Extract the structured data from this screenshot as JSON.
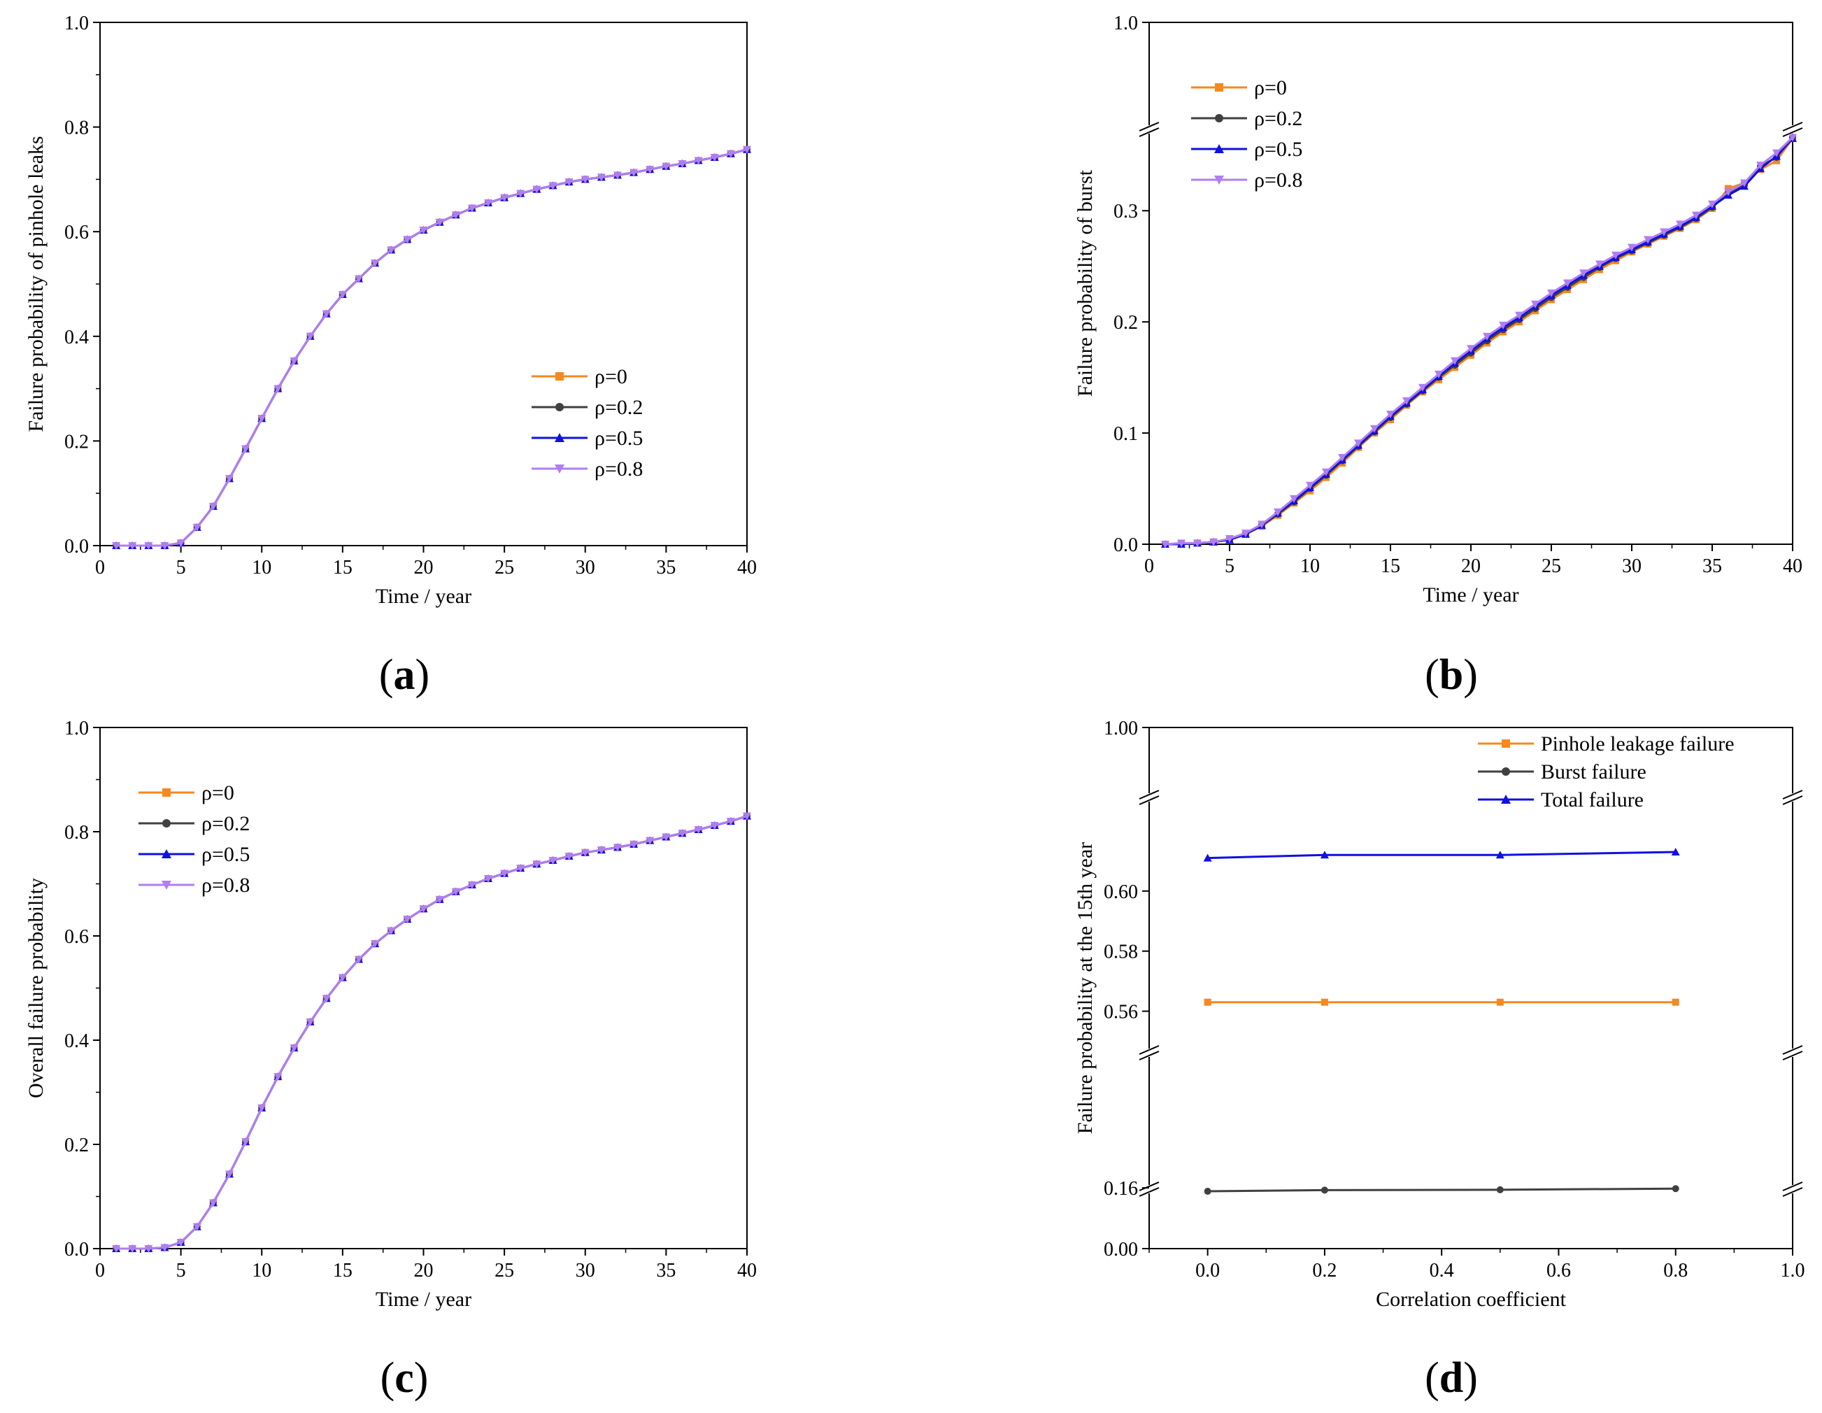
{
  "chart_data": [
    {
      "id": "a",
      "type": "line",
      "panel_label": "a",
      "xlabel": "Time / year",
      "ylabel": "Failure probability of pinhole leaks",
      "xlim": [
        0,
        40
      ],
      "ylim": [
        0,
        1.0
      ],
      "xticks": [
        0,
        5,
        10,
        15,
        20,
        25,
        30,
        35,
        40
      ],
      "xtick_labels": [
        "0",
        "5",
        "10",
        "15",
        "20",
        "25",
        "30",
        "35",
        "40"
      ],
      "yticks": [
        0,
        0.2,
        0.4,
        0.6,
        0.8,
        1.0
      ],
      "ytick_labels": [
        "0.0",
        "0.2",
        "0.4",
        "0.6",
        "0.8",
        "1.0"
      ],
      "legend_position": "center-right",
      "x": [
        1,
        2,
        3,
        4,
        5,
        6,
        7,
        8,
        9,
        10,
        11,
        12,
        13,
        14,
        15,
        16,
        17,
        18,
        19,
        20,
        21,
        22,
        23,
        24,
        25,
        26,
        27,
        28,
        29,
        30,
        31,
        32,
        33,
        34,
        35,
        36,
        37,
        38,
        39,
        40
      ],
      "series": [
        {
          "name": "ρ=0",
          "color": "#f5891f",
          "marker": "square",
          "values": [
            0,
            0,
            0,
            0,
            0.005,
            0.035,
            0.075,
            0.128,
            0.185,
            0.243,
            0.3,
            0.353,
            0.4,
            0.443,
            0.48,
            0.51,
            0.54,
            0.565,
            0.585,
            0.603,
            0.618,
            0.632,
            0.645,
            0.655,
            0.665,
            0.673,
            0.681,
            0.688,
            0.695,
            0.7,
            0.704,
            0.708,
            0.713,
            0.719,
            0.725,
            0.73,
            0.736,
            0.742,
            0.749,
            0.757
          ]
        },
        {
          "name": "ρ=0.2",
          "color": "#404040",
          "marker": "circle",
          "values": [
            0,
            0,
            0,
            0,
            0.005,
            0.035,
            0.075,
            0.128,
            0.185,
            0.243,
            0.3,
            0.353,
            0.4,
            0.443,
            0.48,
            0.51,
            0.54,
            0.565,
            0.585,
            0.603,
            0.618,
            0.632,
            0.645,
            0.655,
            0.665,
            0.673,
            0.681,
            0.688,
            0.695,
            0.7,
            0.704,
            0.708,
            0.713,
            0.719,
            0.725,
            0.73,
            0.736,
            0.742,
            0.749,
            0.757
          ]
        },
        {
          "name": "ρ=0.5",
          "color": "#1010e0",
          "marker": "triangle-up",
          "values": [
            0,
            0,
            0,
            0,
            0.005,
            0.035,
            0.075,
            0.128,
            0.185,
            0.243,
            0.3,
            0.353,
            0.4,
            0.443,
            0.48,
            0.51,
            0.54,
            0.565,
            0.585,
            0.603,
            0.618,
            0.632,
            0.645,
            0.655,
            0.665,
            0.673,
            0.681,
            0.688,
            0.695,
            0.7,
            0.704,
            0.708,
            0.713,
            0.719,
            0.725,
            0.73,
            0.736,
            0.742,
            0.749,
            0.757
          ]
        },
        {
          "name": "ρ=0.8",
          "color": "#b07ef0",
          "marker": "triangle-down",
          "values": [
            0,
            0,
            0,
            0,
            0.005,
            0.035,
            0.075,
            0.128,
            0.185,
            0.243,
            0.3,
            0.353,
            0.4,
            0.443,
            0.48,
            0.51,
            0.54,
            0.565,
            0.585,
            0.603,
            0.618,
            0.632,
            0.645,
            0.655,
            0.665,
            0.673,
            0.681,
            0.688,
            0.695,
            0.7,
            0.704,
            0.708,
            0.713,
            0.719,
            0.725,
            0.73,
            0.736,
            0.742,
            0.749,
            0.757
          ]
        }
      ]
    },
    {
      "id": "b",
      "type": "line",
      "panel_label": "b",
      "xlabel": "Time / year",
      "ylabel": "Failure probability of burst",
      "xlim": [
        0,
        40
      ],
      "ylim": [
        0,
        1.0
      ],
      "y_break": [
        0.37,
        0.99
      ],
      "xticks": [
        0,
        5,
        10,
        15,
        20,
        25,
        30,
        35,
        40
      ],
      "xtick_labels": [
        "0",
        "5",
        "10",
        "15",
        "20",
        "25",
        "30",
        "35",
        "40"
      ],
      "yticks": [
        0,
        0.1,
        0.2,
        0.3,
        1.0
      ],
      "ytick_labels": [
        "0.0",
        "0.1",
        "0.2",
        "0.3",
        "1.0"
      ],
      "legend_position": "top-left",
      "x": [
        1,
        2,
        3,
        4,
        5,
        6,
        7,
        8,
        9,
        10,
        11,
        12,
        13,
        14,
        15,
        16,
        17,
        18,
        19,
        20,
        21,
        22,
        23,
        24,
        25,
        26,
        27,
        28,
        29,
        30,
        31,
        32,
        33,
        34,
        35,
        36,
        37,
        38,
        39,
        40
      ],
      "series": [
        {
          "name": "ρ=0",
          "color": "#f5891f",
          "marker": "square",
          "values": [
            0,
            0,
            0.001,
            0.002,
            0.004,
            0.009,
            0.016,
            0.026,
            0.037,
            0.048,
            0.06,
            0.073,
            0.087,
            0.1,
            0.112,
            0.125,
            0.137,
            0.148,
            0.159,
            0.17,
            0.181,
            0.191,
            0.2,
            0.21,
            0.22,
            0.229,
            0.238,
            0.247,
            0.255,
            0.263,
            0.27,
            0.277,
            0.284,
            0.292,
            0.302,
            0.32,
            0.325,
            0.337,
            0.345,
            0.365
          ]
        },
        {
          "name": "ρ=0.2",
          "color": "#404040",
          "marker": "circle",
          "values": [
            0,
            0,
            0.001,
            0.002,
            0.004,
            0.009,
            0.017,
            0.027,
            0.038,
            0.05,
            0.062,
            0.075,
            0.088,
            0.101,
            0.114,
            0.126,
            0.138,
            0.15,
            0.161,
            0.172,
            0.183,
            0.193,
            0.202,
            0.212,
            0.222,
            0.231,
            0.24,
            0.249,
            0.257,
            0.264,
            0.271,
            0.278,
            0.285,
            0.293,
            0.303,
            0.316,
            0.323,
            0.34,
            0.348,
            0.366
          ]
        },
        {
          "name": "ρ=0.5",
          "color": "#1010e0",
          "marker": "triangle-up",
          "values": [
            0,
            0,
            0.001,
            0.002,
            0.004,
            0.009,
            0.017,
            0.028,
            0.039,
            0.051,
            0.063,
            0.076,
            0.089,
            0.102,
            0.115,
            0.127,
            0.139,
            0.151,
            0.163,
            0.174,
            0.185,
            0.195,
            0.204,
            0.214,
            0.224,
            0.233,
            0.242,
            0.25,
            0.258,
            0.265,
            0.272,
            0.279,
            0.286,
            0.294,
            0.304,
            0.314,
            0.322,
            0.338,
            0.349,
            0.365
          ]
        },
        {
          "name": "ρ=0.8",
          "color": "#b07ef0",
          "marker": "triangle-down",
          "values": [
            0,
            0.001,
            0.001,
            0.002,
            0.005,
            0.01,
            0.018,
            0.029,
            0.041,
            0.053,
            0.065,
            0.078,
            0.091,
            0.104,
            0.117,
            0.129,
            0.141,
            0.153,
            0.165,
            0.176,
            0.187,
            0.197,
            0.206,
            0.216,
            0.226,
            0.235,
            0.244,
            0.252,
            0.26,
            0.267,
            0.274,
            0.281,
            0.288,
            0.296,
            0.306,
            0.317,
            0.325,
            0.341,
            0.352,
            0.366
          ]
        }
      ]
    },
    {
      "id": "c",
      "type": "line",
      "panel_label": "c",
      "xlabel": "Time / year",
      "ylabel": "Overall failure probability",
      "xlim": [
        0,
        40
      ],
      "ylim": [
        0,
        1.0
      ],
      "xticks": [
        0,
        5,
        10,
        15,
        20,
        25,
        30,
        35,
        40
      ],
      "xtick_labels": [
        "0",
        "5",
        "10",
        "15",
        "20",
        "25",
        "30",
        "35",
        "40"
      ],
      "yticks": [
        0,
        0.2,
        0.4,
        0.6,
        0.8,
        1.0
      ],
      "ytick_labels": [
        "0.0",
        "0.2",
        "0.4",
        "0.6",
        "0.8",
        "1.0"
      ],
      "legend_position": "top-left",
      "x": [
        1,
        2,
        3,
        4,
        5,
        6,
        7,
        8,
        9,
        10,
        11,
        12,
        13,
        14,
        15,
        16,
        17,
        18,
        19,
        20,
        21,
        22,
        23,
        24,
        25,
        26,
        27,
        28,
        29,
        30,
        31,
        32,
        33,
        34,
        35,
        36,
        37,
        38,
        39,
        40
      ],
      "series": [
        {
          "name": "ρ=0",
          "color": "#f5891f",
          "marker": "square",
          "values": [
            0,
            0,
            0,
            0.002,
            0.012,
            0.042,
            0.088,
            0.143,
            0.205,
            0.27,
            0.33,
            0.385,
            0.435,
            0.48,
            0.52,
            0.555,
            0.585,
            0.61,
            0.632,
            0.652,
            0.67,
            0.685,
            0.698,
            0.71,
            0.72,
            0.73,
            0.738,
            0.745,
            0.753,
            0.76,
            0.765,
            0.77,
            0.776,
            0.783,
            0.79,
            0.797,
            0.804,
            0.812,
            0.82,
            0.83
          ]
        },
        {
          "name": "ρ=0.2",
          "color": "#404040",
          "marker": "circle",
          "values": [
            0,
            0,
            0,
            0.002,
            0.012,
            0.042,
            0.088,
            0.143,
            0.205,
            0.27,
            0.33,
            0.385,
            0.435,
            0.48,
            0.52,
            0.555,
            0.585,
            0.61,
            0.632,
            0.652,
            0.67,
            0.685,
            0.698,
            0.71,
            0.72,
            0.73,
            0.738,
            0.745,
            0.753,
            0.76,
            0.765,
            0.77,
            0.776,
            0.783,
            0.79,
            0.797,
            0.804,
            0.812,
            0.82,
            0.83
          ]
        },
        {
          "name": "ρ=0.5",
          "color": "#1010e0",
          "marker": "triangle-up",
          "values": [
            0,
            0,
            0,
            0.002,
            0.012,
            0.042,
            0.088,
            0.143,
            0.205,
            0.27,
            0.33,
            0.385,
            0.435,
            0.48,
            0.52,
            0.555,
            0.585,
            0.61,
            0.632,
            0.652,
            0.67,
            0.685,
            0.698,
            0.71,
            0.72,
            0.73,
            0.738,
            0.745,
            0.753,
            0.76,
            0.765,
            0.77,
            0.776,
            0.783,
            0.79,
            0.797,
            0.804,
            0.812,
            0.82,
            0.83
          ]
        },
        {
          "name": "ρ=0.8",
          "color": "#b07ef0",
          "marker": "triangle-down",
          "values": [
            0,
            0,
            0,
            0.002,
            0.012,
            0.042,
            0.088,
            0.143,
            0.205,
            0.27,
            0.33,
            0.385,
            0.435,
            0.48,
            0.52,
            0.555,
            0.585,
            0.61,
            0.632,
            0.652,
            0.67,
            0.685,
            0.698,
            0.71,
            0.72,
            0.73,
            0.738,
            0.745,
            0.753,
            0.76,
            0.765,
            0.77,
            0.776,
            0.783,
            0.79,
            0.797,
            0.804,
            0.812,
            0.82,
            0.83
          ]
        }
      ]
    },
    {
      "id": "d",
      "type": "line",
      "panel_label": "d",
      "xlabel": "Correlation coefficient",
      "ylabel": "Failure probability at the 15th year",
      "xlim": [
        -0.1,
        1.0
      ],
      "ylim": [
        0,
        1.0
      ],
      "y_breaks": [
        [
          0.175,
          0.545
        ],
        [
          0.63,
          0.99
        ]
      ],
      "xticks": [
        0,
        0.2,
        0.4,
        0.6,
        0.8,
        1.0
      ],
      "xtick_labels": [
        "0.0",
        "0.2",
        "0.4",
        "0.6",
        "0.8",
        "1.0"
      ],
      "yticks": [
        0,
        0.16,
        0.56,
        0.58,
        0.6,
        1.0
      ],
      "ytick_labels": [
        "0.00",
        "0.16",
        "0.56",
        "0.58",
        "0.60",
        "1.00"
      ],
      "legend_position": "top-right",
      "x": [
        0,
        0.2,
        0.5,
        0.8
      ],
      "series": [
        {
          "name": "Pinhole leakage failure",
          "color": "#f5891f",
          "marker": "square",
          "values": [
            0.563,
            0.563,
            0.563,
            0.563
          ]
        },
        {
          "name": "Burst failure",
          "color": "#404040",
          "marker": "circle",
          "values": [
            0.151,
            0.154,
            0.155,
            0.158
          ]
        },
        {
          "name": "Total failure",
          "color": "#1010e0",
          "marker": "triangle-up",
          "values": [
            0.611,
            0.612,
            0.612,
            0.613
          ]
        }
      ]
    }
  ]
}
